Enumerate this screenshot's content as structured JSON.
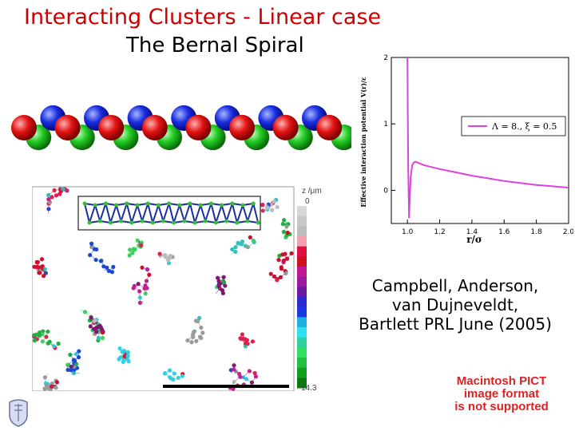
{
  "slide": {
    "title": "Interacting Clusters - Linear case",
    "subtitle": "The Bernal Spiral",
    "citation": [
      "Campbell, Anderson,",
      "van Dujneveldt,",
      "Bartlett PRL June (2005)"
    ],
    "pict_notice": [
      "Macintosh PICT",
      "image format",
      "is not supported"
    ]
  },
  "micrograph": {
    "colorbar_label": "z /μm",
    "colorbar_min": "0",
    "colorbar_max": "14.3"
  },
  "chart_data": {
    "type": "line",
    "xlabel": "r/σ",
    "ylabel": "Effective interaction potential V(r)/ε",
    "xlim": [
      0.9,
      2.0
    ],
    "ylim": [
      -0.5,
      2.0
    ],
    "x_ticks": [
      "1.0",
      "1.2",
      "1.4",
      "1.6",
      "1.8",
      "2.0"
    ],
    "y_ticks": [
      "0",
      "1",
      "2"
    ],
    "legend": "Λ = 8.,  ξ = 0.5",
    "series": [
      {
        "color": "#e040e0",
        "x": [
          1.0,
          1.002,
          1.005,
          1.01,
          1.015,
          1.02,
          1.03,
          1.04,
          1.05,
          1.07,
          1.1,
          1.15,
          1.2,
          1.3,
          1.4,
          1.5,
          1.6,
          1.7,
          1.8,
          1.9,
          2.0
        ],
        "y": [
          2.0,
          1.2,
          0.3,
          -0.42,
          -0.1,
          0.2,
          0.38,
          0.42,
          0.43,
          0.41,
          0.38,
          0.35,
          0.32,
          0.27,
          0.22,
          0.18,
          0.14,
          0.11,
          0.08,
          0.06,
          0.04
        ]
      }
    ]
  }
}
